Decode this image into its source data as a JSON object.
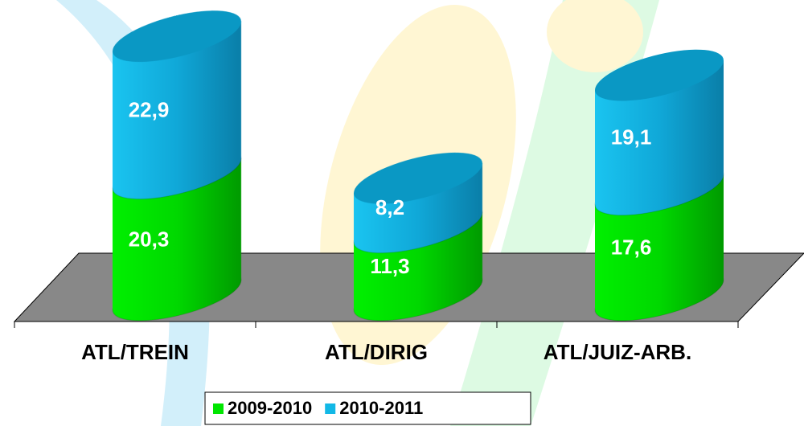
{
  "chart_data": {
    "type": "bar",
    "stacked": true,
    "style": "cylinder",
    "categories": [
      "ATL/TREIN",
      "ATL/DIRIG",
      "ATL/JUIZ-ARB."
    ],
    "series": [
      {
        "name": "2009-2010",
        "color": "#00e600",
        "values": [
          20.3,
          11.3,
          17.6
        ],
        "value_labels": [
          "20,3",
          "11,3",
          "17,6"
        ]
      },
      {
        "name": "2010-2011",
        "color": "#12b8e6",
        "values": [
          22.9,
          8.2,
          19.1
        ],
        "value_labels": [
          "22,9",
          "8,2",
          "19,1"
        ]
      }
    ],
    "legend": "bottom"
  }
}
